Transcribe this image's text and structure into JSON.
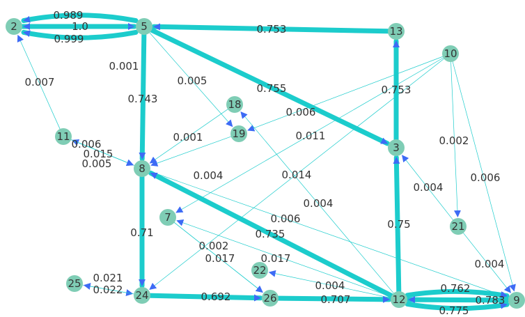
{
  "colors": {
    "edge": "#1ccccc",
    "arrow": "#3d6bf5",
    "node": "#7fcdb5",
    "text": "#333333"
  },
  "nodes": [
    "2",
    "5",
    "13",
    "10",
    "18",
    "19",
    "11",
    "8",
    "3",
    "7",
    "21",
    "22",
    "25",
    "24",
    "26",
    "12",
    "9"
  ],
  "edges": [
    {
      "source": "5",
      "target": "2",
      "label": "0.989",
      "weight": 0.989
    },
    {
      "source": "2",
      "target": "5",
      "label": "1.0",
      "weight": 1.0
    },
    {
      "source": "5",
      "target": "2",
      "label": "0.999",
      "weight": 0.999
    },
    {
      "source": "13",
      "target": "5",
      "label": "0.753",
      "weight": 0.753
    },
    {
      "source": "5",
      "target": "2",
      "label": "0.001",
      "weight": 0.001
    },
    {
      "source": "11",
      "target": "2",
      "label": "0.007",
      "weight": 0.007
    },
    {
      "source": "5",
      "target": "8",
      "label": "0.743",
      "weight": 0.743
    },
    {
      "source": "5",
      "target": "19",
      "label": "0.005",
      "weight": 0.005
    },
    {
      "source": "5",
      "target": "3",
      "label": "0.755",
      "weight": 0.755
    },
    {
      "source": "3",
      "target": "13",
      "label": "0.753",
      "weight": 0.753
    },
    {
      "source": "10",
      "target": "19",
      "label": "0.006",
      "weight": 0.006
    },
    {
      "source": "10",
      "target": "7",
      "label": "0.011",
      "weight": 0.011
    },
    {
      "source": "10",
      "target": "21",
      "label": "0.002",
      "weight": 0.002
    },
    {
      "source": "10",
      "target": "9",
      "label": "0.006",
      "weight": 0.006
    },
    {
      "source": "18",
      "target": "8",
      "label": "0.001",
      "weight": 0.001
    },
    {
      "source": "19",
      "target": "8",
      "label": "0.004",
      "weight": 0.004
    },
    {
      "source": "11",
      "target": "8",
      "label": "0.006",
      "weight": 0.006
    },
    {
      "source": "8",
      "target": "11",
      "label": "0.015",
      "weight": 0.015
    },
    {
      "source": "11",
      "target": "8",
      "label": "0.005",
      "weight": 0.005
    },
    {
      "source": "10",
      "target": "24",
      "label": "0.014",
      "weight": 0.014
    },
    {
      "source": "12",
      "target": "18",
      "label": "0.004",
      "weight": 0.004
    },
    {
      "source": "21",
      "target": "3",
      "label": "0.004",
      "weight": 0.004
    },
    {
      "source": "8",
      "target": "9",
      "label": "0.006",
      "weight": 0.006
    },
    {
      "source": "12",
      "target": "8",
      "label": "0.735",
      "weight": 0.735
    },
    {
      "source": "12",
      "target": "3",
      "label": "0.75",
      "weight": 0.75
    },
    {
      "source": "8",
      "target": "24",
      "label": "0.71",
      "weight": 0.71
    },
    {
      "source": "7",
      "target": "26",
      "label": "0.002",
      "weight": 0.002
    },
    {
      "source": "12",
      "target": "7",
      "label": "0.017",
      "weight": 0.017
    },
    {
      "source": "7",
      "target": "26",
      "label": "0.017",
      "weight": 0.017
    },
    {
      "source": "21",
      "target": "9",
      "label": "0.004",
      "weight": 0.004
    },
    {
      "source": "25",
      "target": "24",
      "label": "0.021",
      "weight": 0.021
    },
    {
      "source": "24",
      "target": "25",
      "label": "0.022",
      "weight": 0.022
    },
    {
      "source": "12",
      "target": "22",
      "label": "0.004",
      "weight": 0.004
    },
    {
      "source": "24",
      "target": "26",
      "label": "0.692",
      "weight": 0.692
    },
    {
      "source": "26",
      "target": "12",
      "label": "0.707",
      "weight": 0.707
    },
    {
      "source": "12",
      "target": "9",
      "label": "0.762",
      "weight": 0.762
    },
    {
      "source": "9",
      "target": "12",
      "label": "0.783",
      "weight": 0.783
    },
    {
      "source": "12",
      "target": "9",
      "label": "0.775",
      "weight": 0.775
    }
  ]
}
